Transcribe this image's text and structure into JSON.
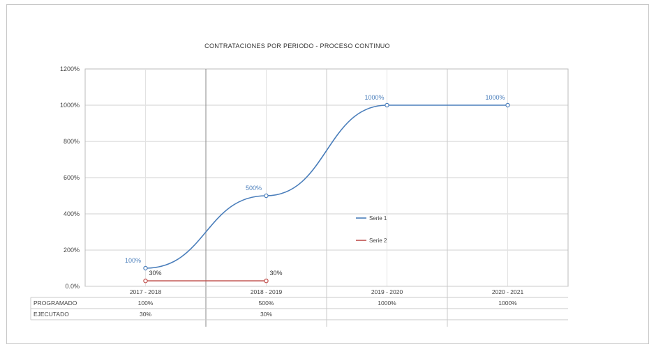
{
  "chart_data": {
    "type": "line",
    "title": "CONTRATACIONES POR PERIODO - PROCESO CONTINUO",
    "xlabel": "",
    "ylabel": "",
    "ylim": [
      0,
      1200
    ],
    "y_ticks": [
      "0.0%",
      "200%",
      "400%",
      "600%",
      "800%",
      "1000%",
      "1200%"
    ],
    "y_tick_values": [
      0,
      200,
      400,
      600,
      800,
      1000,
      1200
    ],
    "categories": [
      "2017 - 2018",
      "2018 - 2019",
      "2019 - 2020",
      "2020 - 2021"
    ],
    "series": [
      {
        "name": "Serie 1",
        "color": "#4a7ebb",
        "x": [
          0,
          1,
          2,
          3
        ],
        "values": [
          100,
          500,
          1000,
          1000
        ],
        "labels": [
          "100%",
          "500%",
          "1000%",
          "1000%"
        ],
        "table_values": [
          "100%",
          "500%",
          "1000%",
          "1000%"
        ]
      },
      {
        "name": "Serie 2",
        "color": "#c0504d",
        "x": [
          0,
          1
        ],
        "values": [
          30,
          30
        ],
        "labels": [
          "30%",
          "30%"
        ],
        "table_values": [
          "30%",
          "30%"
        ]
      }
    ],
    "row_headers": [
      "PROGRAMADO",
      "EJECUTADO"
    ],
    "grid": true,
    "legend_position": "center-right"
  }
}
